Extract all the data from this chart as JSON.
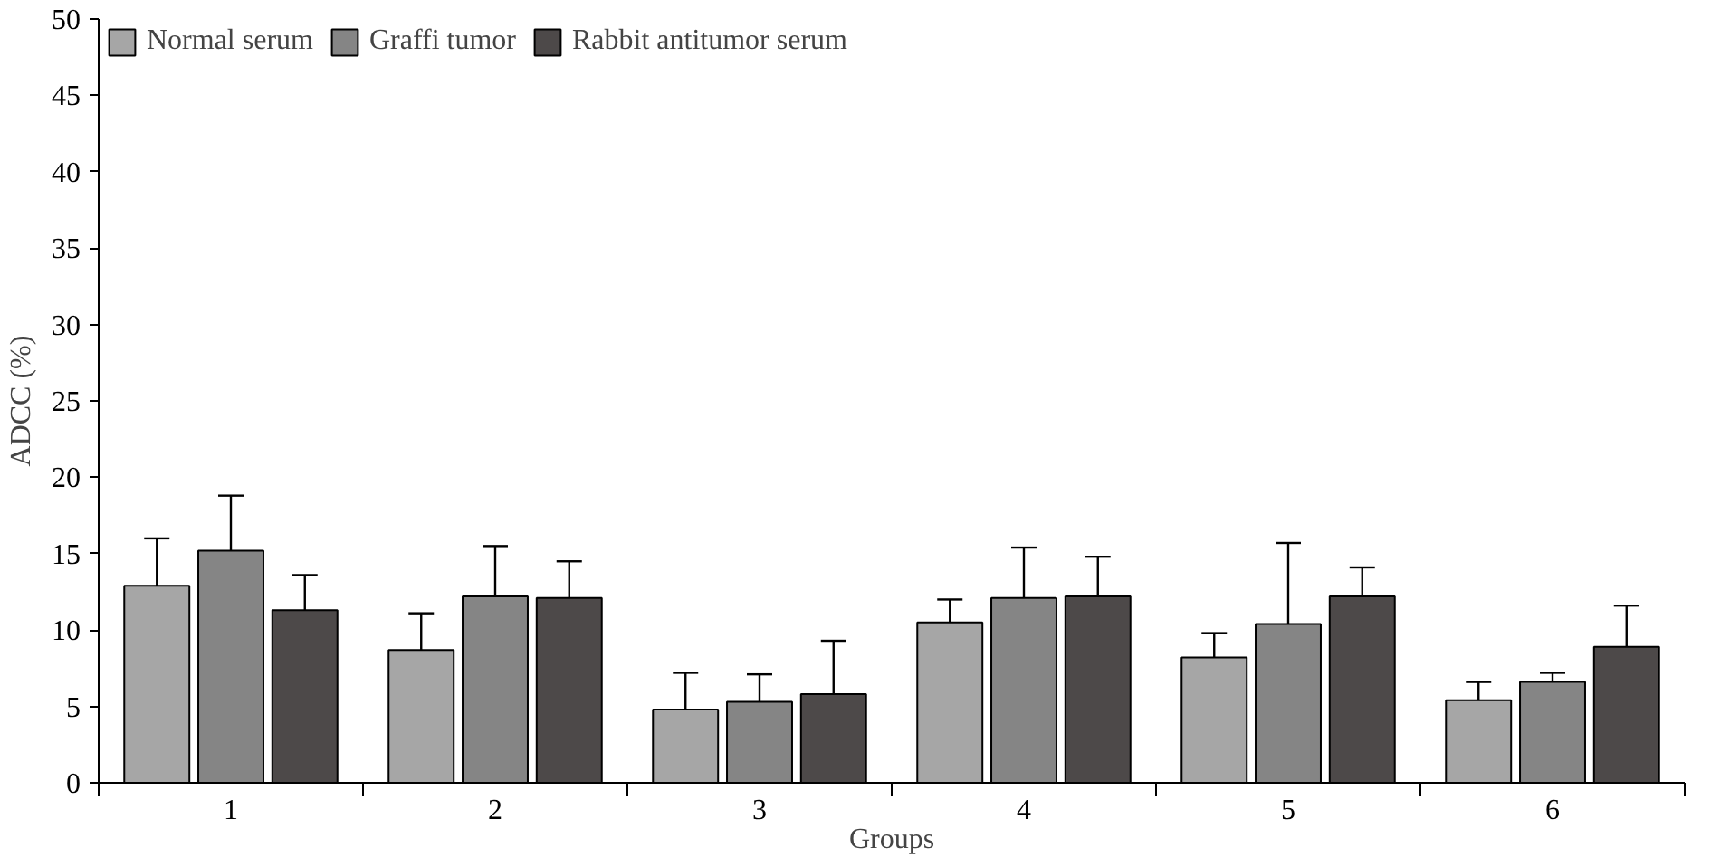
{
  "chart_data": {
    "type": "bar",
    "xlabel": "Groups",
    "ylabel": "ADCC (%)",
    "categories": [
      "1",
      "2",
      "3",
      "4",
      "5",
      "6"
    ],
    "series": [
      {
        "name": "Normal serum",
        "color": "#a6a6a6",
        "values": [
          12.9,
          8.7,
          4.8,
          10.5,
          8.2,
          5.4
        ],
        "errors": [
          [
            12.9,
            16.0
          ],
          [
            8.7,
            11.1
          ],
          [
            4.8,
            7.2
          ],
          [
            10.5,
            12.0
          ],
          [
            8.2,
            9.8
          ],
          [
            5.4,
            6.6
          ]
        ]
      },
      {
        "name": "Graffi tumor",
        "color": "#858585",
        "values": [
          15.2,
          12.2,
          5.3,
          12.1,
          10.4,
          6.6
        ],
        "errors": [
          [
            15.2,
            18.8
          ],
          [
            12.2,
            15.5
          ],
          [
            5.3,
            7.1
          ],
          [
            12.1,
            15.4
          ],
          [
            10.4,
            15.7
          ],
          [
            6.6,
            7.2
          ]
        ]
      },
      {
        "name": "Rabbit antitumor serum",
        "color": "#4d4949",
        "values": [
          11.3,
          12.1,
          5.8,
          12.2,
          12.2,
          8.9
        ],
        "errors": [
          [
            11.3,
            13.6
          ],
          [
            12.1,
            14.5
          ],
          [
            5.8,
            9.3
          ],
          [
            12.2,
            14.8
          ],
          [
            12.2,
            14.1
          ],
          [
            8.9,
            11.6
          ]
        ]
      }
    ],
    "ylim": [
      0,
      50
    ],
    "yticks": [
      0,
      5,
      10,
      15,
      20,
      25,
      30,
      35,
      40,
      45,
      50
    ],
    "grid": false,
    "legend": "top left"
  }
}
